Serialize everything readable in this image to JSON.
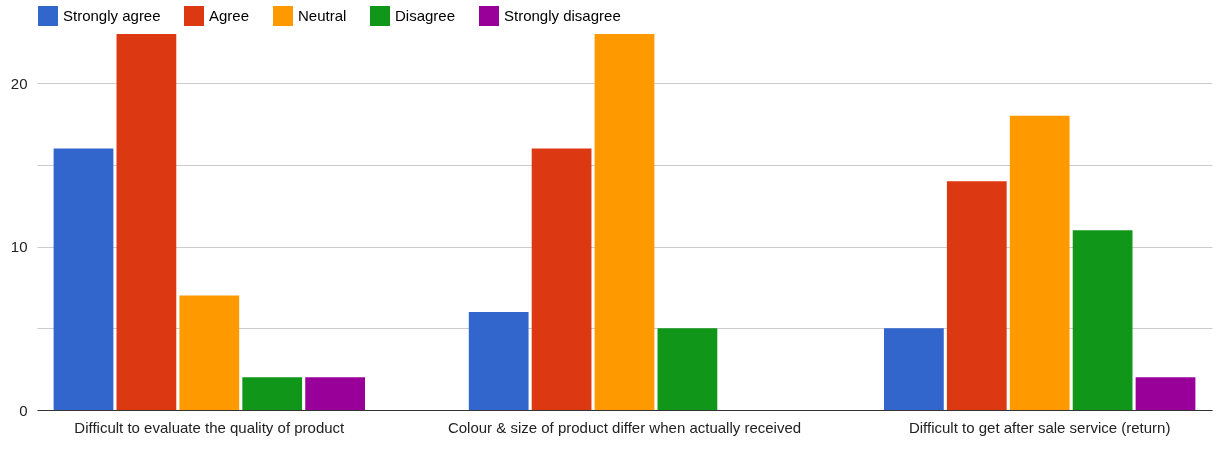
{
  "chart_data": {
    "type": "bar",
    "categories": [
      "Difficult to evaluate the quality of product",
      "Colour & size of product differ when actually received",
      "Difficult to get after sale service (return)"
    ],
    "series": [
      {
        "name": "Strongly agree",
        "color": "#3366cc",
        "values": [
          16,
          6,
          5
        ]
      },
      {
        "name": "Agree",
        "color": "#dc3912",
        "values": [
          23,
          16,
          14
        ]
      },
      {
        "name": "Neutral",
        "color": "#ff9900",
        "values": [
          7,
          23,
          18
        ]
      },
      {
        "name": "Disagree",
        "color": "#109618",
        "values": [
          2,
          5,
          11
        ]
      },
      {
        "name": "Strongly disagree",
        "color": "#990099",
        "values": [
          2,
          0,
          2
        ]
      }
    ],
    "ylim": [
      0,
      23
    ],
    "yticks": [
      0,
      {
        "value": 5,
        "label": null
      },
      10,
      {
        "value": 15,
        "label": null
      },
      20
    ],
    "grid": "y",
    "legend": "top left"
  }
}
